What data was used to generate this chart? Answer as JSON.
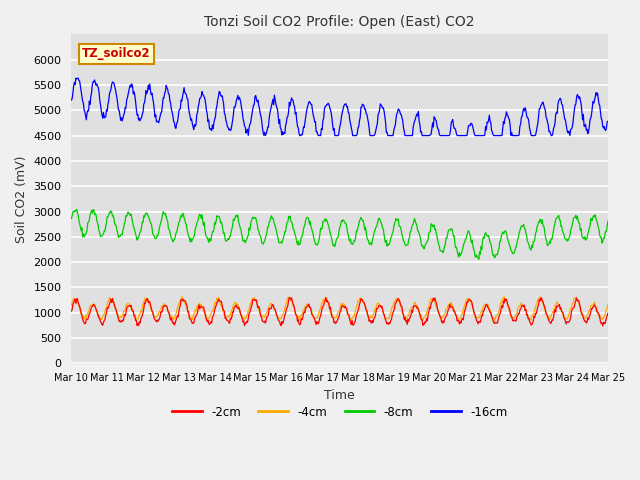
{
  "title": "Tonzi Soil CO2 Profile: Open (East) CO2",
  "xlabel": "Time",
  "ylabel": "Soil CO2 (mV)",
  "ylim": [
    0,
    6500
  ],
  "yticks": [
    0,
    500,
    1000,
    1500,
    2000,
    2500,
    3000,
    3500,
    4000,
    4500,
    5000,
    5500,
    6000
  ],
  "fig_bg": "#f0f0f0",
  "plot_bg": "#e0e0e0",
  "grid_color": "#ffffff",
  "series_colors": {
    "-2cm": "#ff0000",
    "-4cm": "#ffaa00",
    "-8cm": "#00cc00",
    "-16cm": "#0000ff"
  },
  "n_days": 15,
  "x_labels": [
    "Mar 10",
    "Mar 11",
    "Mar 12",
    "Mar 13",
    "Mar 14",
    "Mar 15",
    "Mar 16",
    "Mar 17",
    "Mar 18",
    "Mar 19",
    "Mar 20",
    "Mar 21",
    "Mar 22",
    "Mar 23",
    "Mar 24",
    "Mar 25"
  ],
  "legend_box_color": "#ffffcc",
  "legend_box_edge": "#cc8800",
  "legend_text": "TZ_soilco2"
}
